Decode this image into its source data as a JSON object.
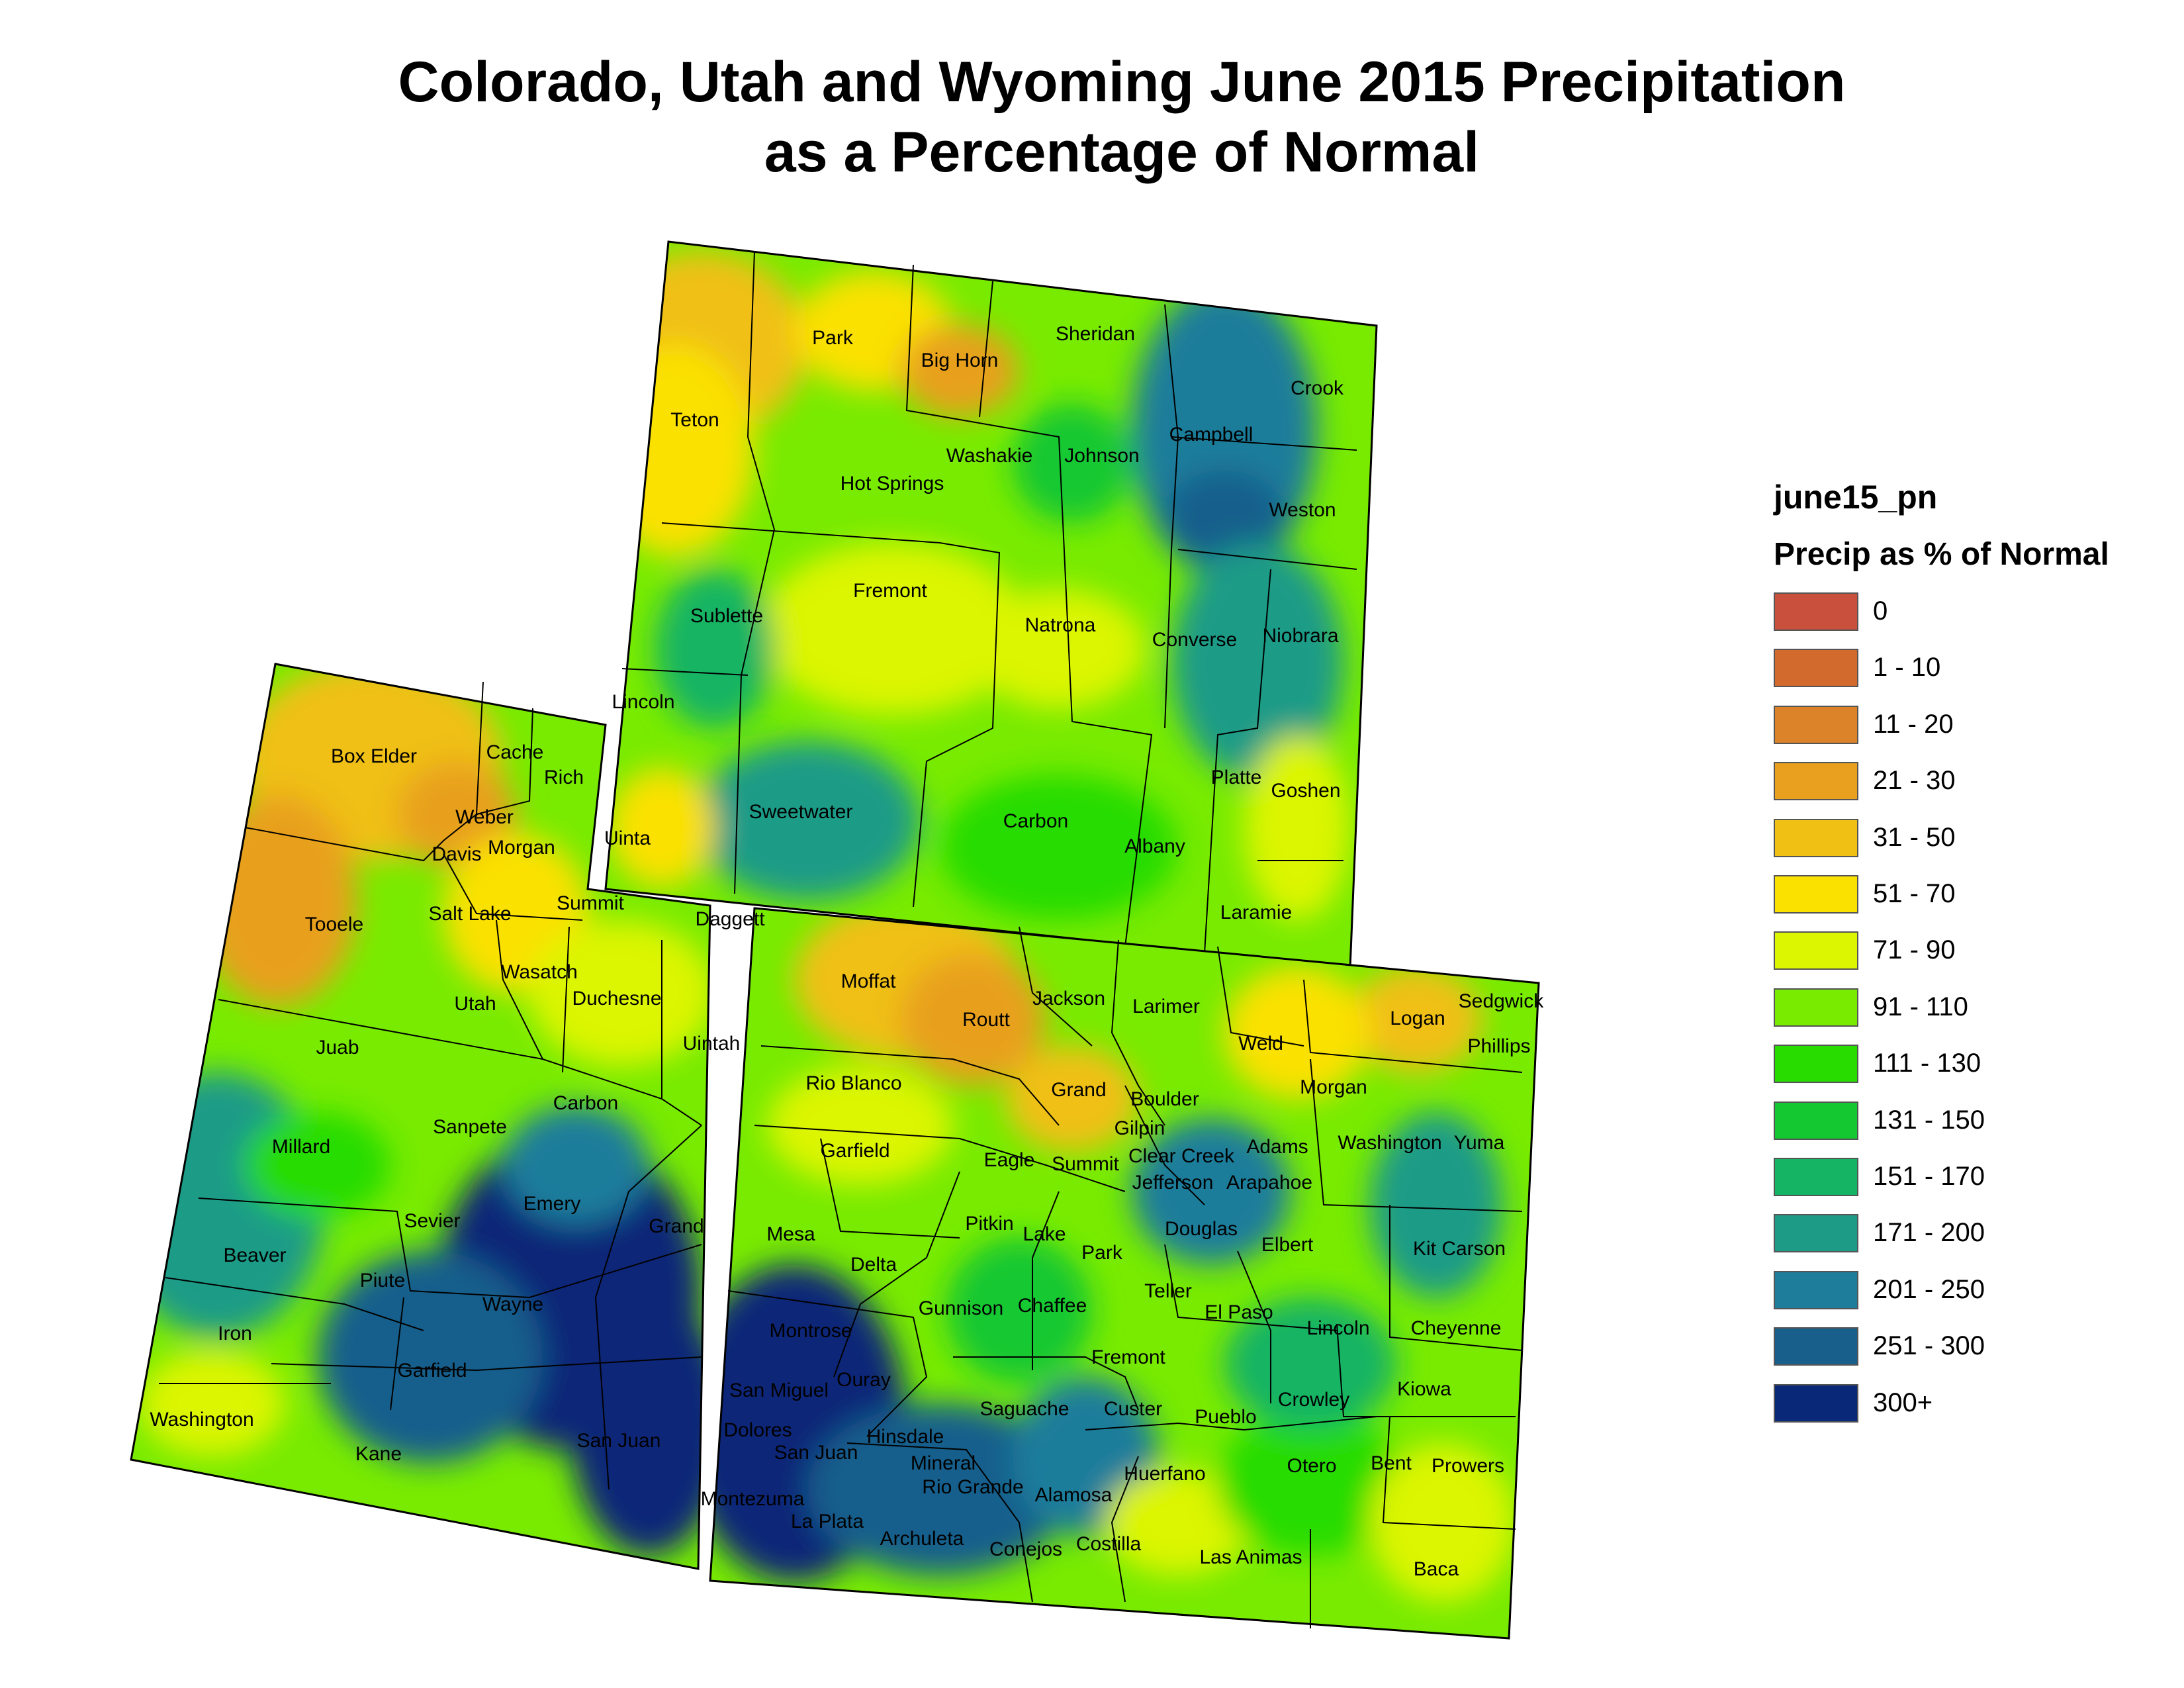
{
  "title": {
    "line1": "Colorado, Utah and Wyoming June 2015 Precipitation",
    "line2": "as a Percentage of Normal"
  },
  "legend": {
    "title": "june15_pn",
    "subtitle": "Precip as % of Normal",
    "items": [
      {
        "label": "0",
        "color": "#c8503c"
      },
      {
        "label": "1 - 10",
        "color": "#d2692d"
      },
      {
        "label": "11 - 20",
        "color": "#dc8228"
      },
      {
        "label": "21 - 30",
        "color": "#e8a01e"
      },
      {
        "label": "31 - 50",
        "color": "#f0c014"
      },
      {
        "label": "51 - 70",
        "color": "#fae100"
      },
      {
        "label": "71 - 90",
        "color": "#dcf500"
      },
      {
        "label": "91 - 110",
        "color": "#78eb00"
      },
      {
        "label": "111 - 130",
        "color": "#28dc00"
      },
      {
        "label": "131 - 150",
        "color": "#14c832"
      },
      {
        "label": "151 - 170",
        "color": "#14b464"
      },
      {
        "label": "171 - 200",
        "color": "#1e9b87"
      },
      {
        "label": "201 - 250",
        "color": "#1e7d9b"
      },
      {
        "label": "251 - 300",
        "color": "#195f8c"
      },
      {
        "label": "300+",
        "color": "#0a2878"
      }
    ]
  },
  "counties": {
    "wyoming": [
      "Park",
      "Big Horn",
      "Sheridan",
      "Crook",
      "Teton",
      "Washakie",
      "Johnson",
      "Campbell",
      "Hot Springs",
      "Weston",
      "Fremont",
      "Sublette",
      "Natrona",
      "Converse",
      "Niobrara",
      "Lincoln",
      "Sweetwater",
      "Uinta",
      "Carbon",
      "Albany",
      "Platte",
      "Goshen",
      "Laramie"
    ],
    "utah": [
      "Box Elder",
      "Cache",
      "Rich",
      "Weber",
      "Davis",
      "Morgan",
      "Tooele",
      "Salt Lake",
      "Summit",
      "Daggett",
      "Wasatch",
      "Utah",
      "Duchesne",
      "Uintah",
      "Juab",
      "Sanpete",
      "Carbon",
      "Millard",
      "Emery",
      "Grand",
      "Sevier",
      "Beaver",
      "Piute",
      "Wayne",
      "Iron",
      "Garfield",
      "Washington",
      "Kane",
      "San Juan"
    ],
    "colorado": [
      "Moffat",
      "Routt",
      "Jackson",
      "Larimer",
      "Weld",
      "Logan",
      "Sedgwick",
      "Phillips",
      "Rio Blanco",
      "Grand",
      "Boulder",
      "Morgan",
      "Gilpin",
      "Garfield",
      "Eagle",
      "Summit",
      "Clear Creek",
      "Adams",
      "Washington",
      "Yuma",
      "Jefferson",
      "Arapahoe",
      "Mesa",
      "Pitkin",
      "Lake",
      "Douglas",
      "Elbert",
      "Delta",
      "Park",
      "Kit Carson",
      "Teller",
      "Gunnison",
      "Chaffee",
      "El Paso",
      "Lincoln",
      "Cheyenne",
      "Montrose",
      "Fremont",
      "Ouray",
      "San Miguel",
      "Crowley",
      "Kiowa",
      "Saguache",
      "Custer",
      "Pueblo",
      "Dolores",
      "Hinsdale",
      "San Juan",
      "Mineral",
      "Otero",
      "Bent",
      "Prowers",
      "Huerfano",
      "Rio Grande",
      "Alamosa",
      "Montezuma",
      "La Plata",
      "Archuleta",
      "Conejos",
      "Costilla",
      "Las Animas",
      "Baca"
    ]
  }
}
